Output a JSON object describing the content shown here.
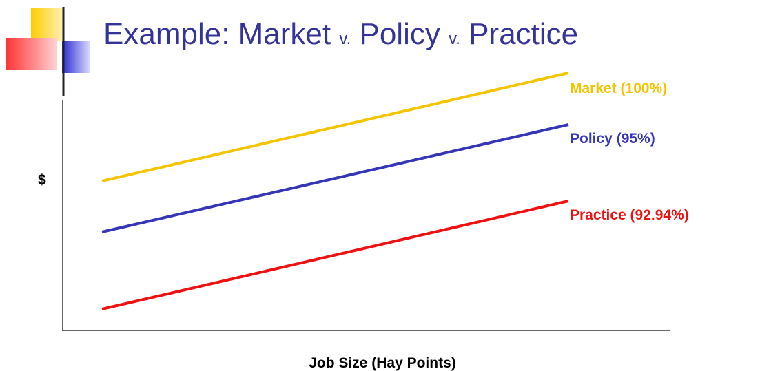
{
  "slide": {
    "title": [
      "Example: Market",
      "v.",
      "Policy",
      "v.",
      "Practice"
    ],
    "y_axis_label": "$",
    "x_axis_label": "Job Size (Hay Points)",
    "lines": [
      {
        "label": "Market (100%)",
        "color": "#f5c400"
      },
      {
        "label": "Policy (95%)",
        "color": "#3535b8"
      },
      {
        "label": "Practice (92.94%)",
        "color": "#ee1111"
      }
    ]
  }
}
